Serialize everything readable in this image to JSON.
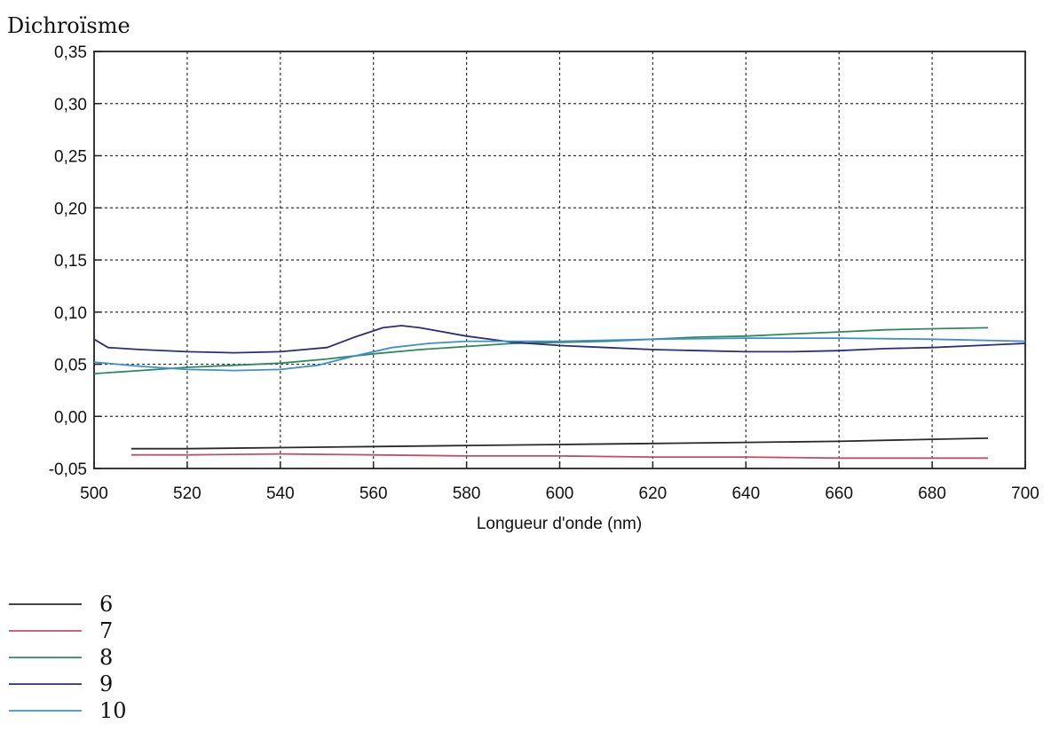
{
  "chart_data": {
    "type": "line",
    "ylabel": "Dichroïsme",
    "xlabel": "Longueur d'onde (nm)",
    "xlim": [
      500,
      700
    ],
    "ylim": [
      -0.05,
      0.35
    ],
    "xticks": [
      "500",
      "520",
      "540",
      "560",
      "580",
      "600",
      "620",
      "640",
      "660",
      "680",
      "700"
    ],
    "yticks": [
      "0,35",
      "0,30",
      "0,25",
      "0,20",
      "0,15",
      "0,10",
      "0,05",
      "0,00",
      "-0,05"
    ],
    "grid": true,
    "legend_position": "bottom-left",
    "series": [
      {
        "name": "6",
        "color": "#2a2a2a",
        "x": [
          508,
          520,
          540,
          560,
          580,
          600,
          620,
          640,
          660,
          680,
          692
        ],
        "y": [
          -0.031,
          -0.031,
          -0.03,
          -0.029,
          -0.028,
          -0.027,
          -0.026,
          -0.025,
          -0.024,
          -0.022,
          -0.021
        ]
      },
      {
        "name": "7",
        "color": "#c0506a",
        "x": [
          508,
          520,
          540,
          560,
          580,
          600,
          620,
          640,
          660,
          680,
          692
        ],
        "y": [
          -0.037,
          -0.037,
          -0.036,
          -0.037,
          -0.038,
          -0.038,
          -0.039,
          -0.039,
          -0.04,
          -0.04,
          -0.04
        ]
      },
      {
        "name": "8",
        "color": "#2e8a5e",
        "x": [
          500,
          510,
          520,
          530,
          540,
          550,
          560,
          570,
          580,
          590,
          600,
          610,
          620,
          630,
          640,
          650,
          660,
          670,
          680,
          692
        ],
        "y": [
          0.041,
          0.044,
          0.047,
          0.049,
          0.051,
          0.055,
          0.06,
          0.064,
          0.067,
          0.07,
          0.071,
          0.072,
          0.074,
          0.076,
          0.077,
          0.079,
          0.081,
          0.083,
          0.084,
          0.085
        ]
      },
      {
        "name": "9",
        "color": "#2a2f7a",
        "x": [
          500,
          503,
          510,
          520,
          530,
          540,
          550,
          556,
          562,
          566,
          570,
          580,
          590,
          600,
          610,
          620,
          630,
          640,
          650,
          660,
          670,
          680,
          690,
          700
        ],
        "y": [
          0.074,
          0.066,
          0.064,
          0.062,
          0.061,
          0.062,
          0.066,
          0.076,
          0.085,
          0.087,
          0.085,
          0.077,
          0.071,
          0.068,
          0.066,
          0.064,
          0.063,
          0.062,
          0.062,
          0.063,
          0.065,
          0.066,
          0.068,
          0.07
        ]
      },
      {
        "name": "10",
        "color": "#3d8fd0",
        "x": [
          500,
          510,
          520,
          530,
          540,
          548,
          556,
          564,
          572,
          580,
          590,
          600,
          610,
          620,
          640,
          660,
          680,
          700
        ],
        "y": [
          0.052,
          0.048,
          0.045,
          0.044,
          0.045,
          0.049,
          0.058,
          0.066,
          0.07,
          0.072,
          0.072,
          0.072,
          0.073,
          0.074,
          0.075,
          0.075,
          0.074,
          0.072
        ]
      }
    ]
  }
}
